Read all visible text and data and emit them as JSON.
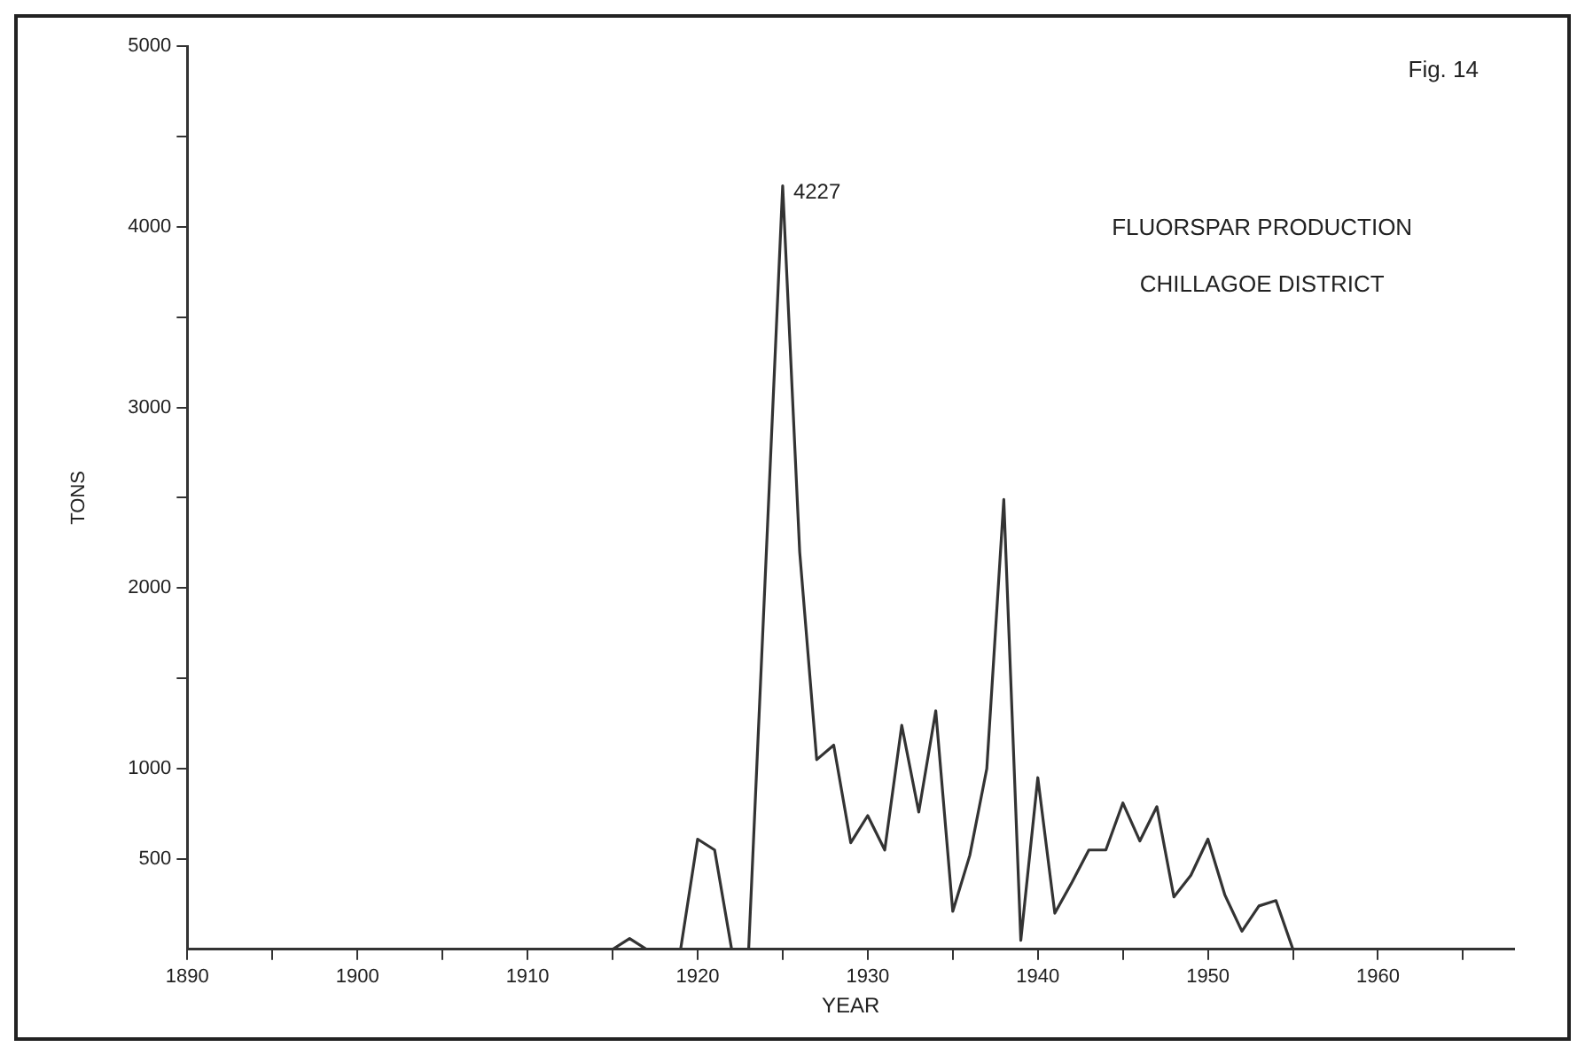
{
  "chart_data": {
    "type": "line",
    "title": "FLUORSPAR PRODUCTION",
    "subtitle": "CHILLAGOE DISTRICT",
    "xlabel": "YEAR",
    "ylabel": "TONS",
    "annotations": [
      "Fig. 14",
      {
        "text": "4227",
        "x": 1925,
        "y": 4227
      }
    ],
    "series": [
      {
        "color": "#333333",
        "x": [
          1915,
          1916,
          1917,
          1918,
          1919,
          1920,
          1921,
          1922,
          1923,
          1925,
          1926,
          1927,
          1928,
          1929,
          1930,
          1931,
          1932,
          1933,
          1934,
          1935,
          1936,
          1937,
          1938,
          1939,
          1940,
          1941,
          1942,
          1943,
          1944,
          1945,
          1946,
          1947,
          1948,
          1949,
          1950,
          1951,
          1952,
          1953,
          1954,
          1955
        ],
        "values": [
          0,
          60,
          0,
          0,
          0,
          610,
          550,
          0,
          0,
          4227,
          2200,
          1050,
          1130,
          590,
          740,
          550,
          1240,
          760,
          1320,
          210,
          520,
          1000,
          2490,
          50,
          950,
          200,
          370,
          550,
          550,
          810,
          600,
          790,
          290,
          410,
          610,
          300,
          100,
          240,
          270,
          0
        ]
      }
    ],
    "xlim": [
      1890,
      1968
    ],
    "xticks": [
      1890,
      {
        "value": 1895,
        "label": null
      },
      1900,
      {
        "value": 1905,
        "label": null
      },
      1910,
      {
        "value": 1915,
        "label": null
      },
      1920,
      {
        "value": 1925,
        "label": null
      },
      1930,
      {
        "value": 1935,
        "label": null
      },
      1940,
      {
        "value": 1945,
        "label": null
      },
      1950,
      {
        "value": 1955,
        "label": null
      },
      1960,
      {
        "value": 1965,
        "label": null
      }
    ],
    "ylim": [
      0,
      5000
    ],
    "yticks": [
      500,
      1000,
      {
        "value": 1500,
        "label": null
      },
      2000,
      {
        "value": 2500,
        "label": null
      },
      3000,
      {
        "value": 3500,
        "label": null
      },
      4000,
      {
        "value": 4500,
        "label": null
      },
      5000
    ],
    "grid": false,
    "legend": false
  }
}
